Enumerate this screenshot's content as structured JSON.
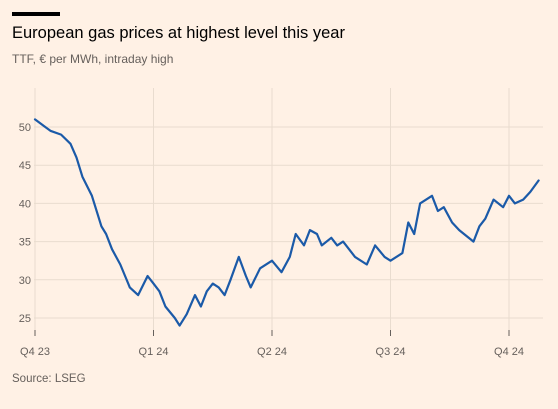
{
  "title": "European gas prices at highest level this year",
  "subtitle": "TTF, € per MWh, intraday high",
  "source": "Source: LSEG",
  "colors": {
    "background": "#fff1e5",
    "line": "#1b5aa8",
    "grid": "#e9dccf",
    "axis": "#66605c"
  },
  "chart_data": {
    "type": "line",
    "title": "European gas prices at highest level this year",
    "subtitle": "TTF, € per MWh, intraday high",
    "xlabel": "",
    "ylabel": "",
    "x_ticks": [
      "Q4 23",
      "Q1 24",
      "Q2 24",
      "Q3 24",
      "Q4 24"
    ],
    "y_ticks": [
      25,
      30,
      35,
      40,
      45,
      50
    ],
    "ylim": [
      23,
      55
    ],
    "grid": true,
    "legend": "none",
    "series": [
      {
        "x": [
          0,
          0.13,
          0.22,
          0.3,
          0.35,
          0.4,
          0.48,
          0.56,
          0.6,
          0.65,
          0.72,
          0.8,
          0.87,
          0.95,
          1.0,
          1.05,
          1.1,
          1.18,
          1.22,
          1.28,
          1.35,
          1.4,
          1.45,
          1.5,
          1.55,
          1.6,
          1.65,
          1.72,
          1.78,
          1.82,
          1.9,
          2.0,
          2.08,
          2.15,
          2.2,
          2.27,
          2.32,
          2.38,
          2.42,
          2.5,
          2.55,
          2.6,
          2.7,
          2.8,
          2.87,
          2.95,
          3.0,
          3.1,
          3.15,
          3.2,
          3.25,
          3.35,
          3.4,
          3.45,
          3.52,
          3.58,
          3.62,
          3.7,
          3.75,
          3.8,
          3.87,
          3.95,
          4.0,
          4.05,
          4.12,
          4.18,
          4.25
        ],
        "values": [
          51.0,
          49.5,
          49.0,
          47.8,
          46.0,
          43.5,
          41.0,
          37.0,
          36.0,
          34.0,
          32.0,
          29.0,
          28.0,
          30.5,
          29.5,
          28.5,
          26.5,
          25.0,
          24.0,
          25.5,
          28.0,
          26.5,
          28.5,
          29.5,
          29.0,
          28.0,
          30.0,
          33.0,
          30.5,
          29.0,
          31.5,
          32.5,
          31.0,
          33.0,
          36.0,
          34.5,
          36.5,
          36.0,
          34.5,
          35.5,
          34.5,
          35.0,
          33.0,
          32.0,
          34.5,
          33.0,
          32.5,
          33.5,
          37.5,
          36.0,
          40.0,
          41.0,
          39.0,
          39.5,
          37.5,
          36.5,
          36.0,
          35.0,
          37.0,
          38.0,
          40.5,
          39.5,
          41.0,
          40.0,
          40.5,
          41.5,
          43.0
        ]
      }
    ]
  }
}
